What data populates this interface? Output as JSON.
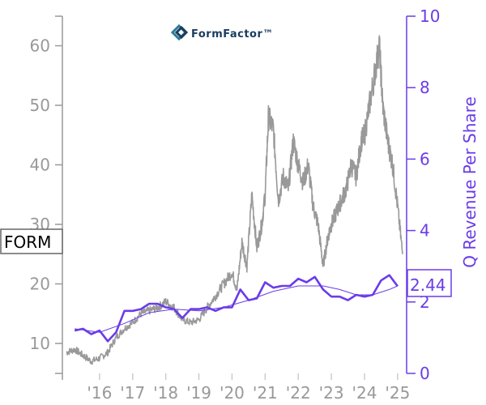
{
  "logo": {
    "text": "FormFactor™",
    "colors": {
      "primary": "#2b7a9a",
      "secondary": "#1a3c5e"
    }
  },
  "ticker_label": "FORM",
  "last_value_label": "2.44",
  "colors": {
    "price": "#999999",
    "revenue": "#6a3ce8",
    "revenue_trend": "#6a3ce8",
    "left_axis": "#999999",
    "right_axis": "#6a3ce8"
  },
  "chart_data": {
    "type": "line",
    "title": "",
    "x_tick_labels": [
      "'16",
      "'17",
      "'18",
      "'19",
      "'20",
      "'21",
      "'22",
      "'23",
      "'24",
      "'25"
    ],
    "x_tick_years": [
      2016,
      2017,
      2018,
      2019,
      2020,
      2021,
      2022,
      2023,
      2024,
      2025
    ],
    "xlim": [
      2015.0,
      2025.15
    ],
    "left_axis": {
      "label": "",
      "ylim": [
        5,
        65
      ],
      "ticks": [
        10,
        20,
        30,
        40,
        50,
        60
      ]
    },
    "right_axis": {
      "label": "Q Revenue Per Share",
      "ylim": [
        0,
        10
      ],
      "ticks": [
        0,
        2,
        4,
        6,
        8,
        10
      ]
    },
    "grid": false,
    "series": [
      {
        "axis": "left",
        "style": "noisy",
        "x": [
          2015.0,
          2015.25,
          2015.5,
          2015.75,
          2016.0,
          2016.25,
          2016.5,
          2016.75,
          2017.0,
          2017.25,
          2017.5,
          2017.75,
          2018.0,
          2018.25,
          2018.5,
          2018.75,
          2019.0,
          2019.25,
          2019.5,
          2019.75,
          2020.0,
          2020.15,
          2020.3,
          2020.45,
          2020.6,
          2020.75,
          2020.9,
          2021.0,
          2021.1,
          2021.25,
          2021.4,
          2021.55,
          2021.7,
          2021.85,
          2022.0,
          2022.15,
          2022.3,
          2022.45,
          2022.6,
          2022.75,
          2022.9,
          2023.0,
          2023.15,
          2023.3,
          2023.45,
          2023.6,
          2023.75,
          2023.9,
          2024.0,
          2024.15,
          2024.3,
          2024.45,
          2024.55,
          2024.7,
          2024.85,
          2025.0,
          2025.15
        ],
        "values": [
          8.5,
          9.0,
          8.0,
          7.0,
          7.5,
          8.5,
          11.0,
          12.5,
          13.5,
          15.0,
          15.5,
          16.0,
          17.0,
          16.0,
          14.0,
          13.5,
          14.0,
          16.0,
          18.0,
          20.0,
          22.0,
          19.0,
          27.0,
          23.0,
          35.0,
          26.0,
          30.0,
          35.0,
          48.0,
          46.0,
          34.0,
          38.0,
          36.0,
          44.0,
          40.0,
          37.0,
          40.0,
          33.0,
          30.0,
          23.0,
          28.0,
          30.0,
          32.0,
          34.0,
          36.0,
          40.0,
          38.0,
          44.0,
          45.0,
          50.0,
          55.0,
          60.0,
          50.0,
          44.0,
          40.0,
          33.0,
          25.0
        ]
      },
      {
        "axis": "right",
        "name": "",
        "x": [
          2015.25,
          2015.5,
          2015.75,
          2016.0,
          2016.25,
          2016.5,
          2016.75,
          2017.0,
          2017.25,
          2017.5,
          2017.75,
          2018.0,
          2018.25,
          2018.5,
          2018.75,
          2019.0,
          2019.25,
          2019.5,
          2019.75,
          2020.0,
          2020.25,
          2020.5,
          2020.75,
          2021.0,
          2021.25,
          2021.5,
          2021.75,
          2022.0,
          2022.25,
          2022.5,
          2022.75,
          2023.0,
          2023.25,
          2023.5,
          2023.75,
          2024.0,
          2024.25,
          2024.5,
          2024.75,
          2025.0
        ],
        "values": [
          1.2,
          1.25,
          1.1,
          1.2,
          0.9,
          1.15,
          1.75,
          1.75,
          1.8,
          1.95,
          1.95,
          1.85,
          1.8,
          1.55,
          1.8,
          1.8,
          1.85,
          1.75,
          1.85,
          1.85,
          2.35,
          2.05,
          2.1,
          2.55,
          2.4,
          2.45,
          2.45,
          2.65,
          2.55,
          2.7,
          2.35,
          2.15,
          2.15,
          2.05,
          2.2,
          2.15,
          2.2,
          2.6,
          2.75,
          2.44
        ]
      },
      {
        "axis": "right",
        "style": "thin",
        "x": [
          2015.25,
          2016.0,
          2016.75,
          2017.5,
          2018.25,
          2019.0,
          2019.75,
          2020.5,
          2021.25,
          2022.0,
          2022.75,
          2023.25,
          2023.75,
          2024.25,
          2024.75,
          2025.0
        ],
        "values": [
          1.25,
          1.15,
          1.4,
          1.7,
          1.8,
          1.75,
          1.85,
          2.05,
          2.3,
          2.45,
          2.45,
          2.35,
          2.2,
          2.2,
          2.35,
          2.45
        ]
      }
    ]
  }
}
